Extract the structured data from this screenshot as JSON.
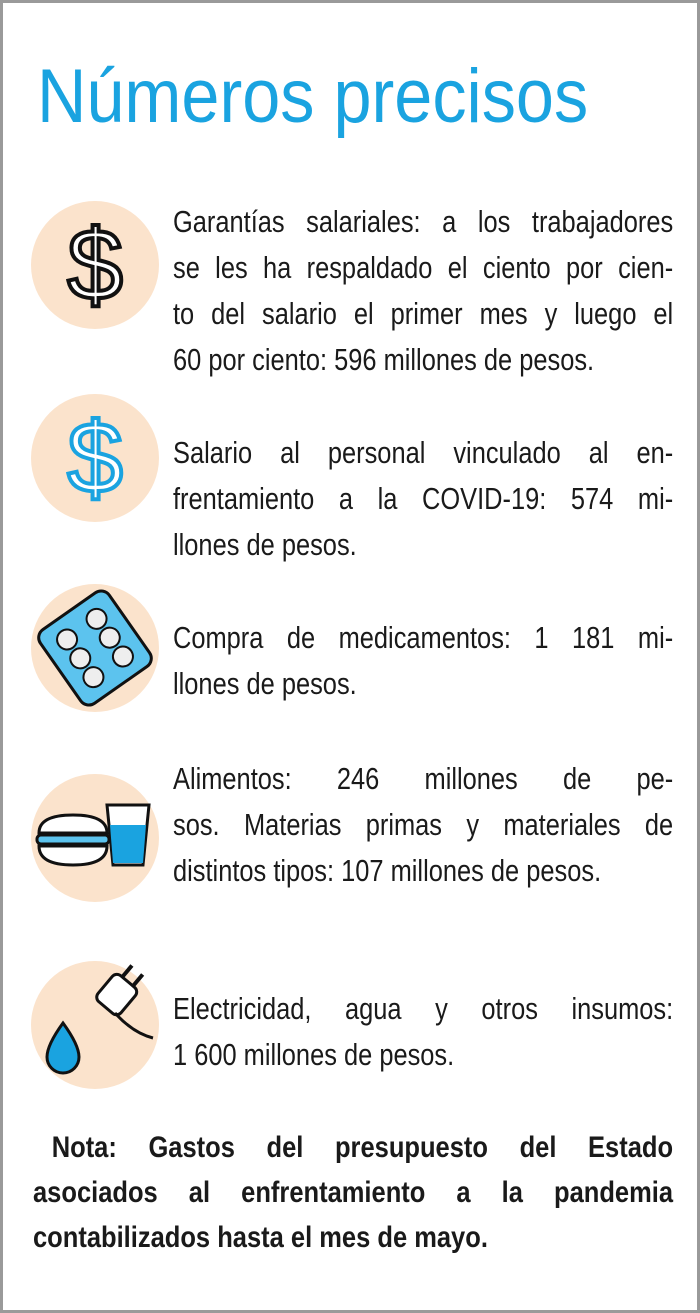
{
  "title": "Números precisos",
  "items": [
    {
      "lines": [
        "Garantías salariales: a los trabajadores",
        "se les ha respaldado el ciento por cien-",
        "to del salario el primer mes y luego el",
        "60 por ciento: 596 millones de pesos."
      ]
    },
    {
      "lines": [
        "Salario al personal vinculado al en-",
        "frentamiento a la COVID-19: 574 mi-",
        "llones de pesos."
      ]
    },
    {
      "lines": [
        "Compra de medicamentos: 1 181 mi-",
        "llones de pesos."
      ]
    },
    {
      "lines": [
        "Alimentos: 246 millones de pe-",
        "sos. Materias primas y materiales de",
        "distintos tipos: 107 millones de pesos."
      ]
    },
    {
      "lines": [
        "Electricidad, agua y otros insumos:",
        "1 600 millones de pesos."
      ]
    }
  ],
  "note": {
    "lines": [
      "Nota: Gastos del presupuesto del Estado",
      "asociados al enfrentamiento a la pandemia",
      "contabilizados hasta el mes de mayo."
    ]
  }
}
